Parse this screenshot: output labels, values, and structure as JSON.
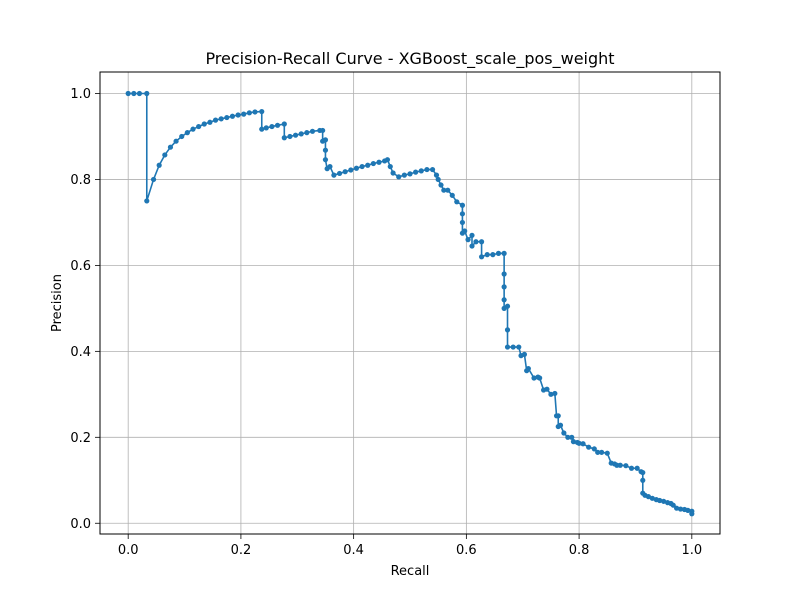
{
  "chart_data": {
    "type": "line",
    "title": "Precision-Recall Curve - XGBoost_scale_pos_weight",
    "xlabel": "Recall",
    "ylabel": "Precision",
    "xlim": [
      -0.05,
      1.05
    ],
    "ylim": [
      -0.025,
      1.05
    ],
    "x_ticks": [
      0.0,
      0.2,
      0.4,
      0.6,
      0.8,
      1.0
    ],
    "x_tick_labels": [
      "0.0",
      "0.2",
      "0.4",
      "0.6",
      "0.8",
      "1.0"
    ],
    "y_ticks": [
      0.0,
      0.2,
      0.4,
      0.6,
      0.8,
      1.0
    ],
    "y_tick_labels": [
      "0.0",
      "0.2",
      "0.4",
      "0.6",
      "0.8",
      "1.0"
    ],
    "grid": true,
    "legend": "none",
    "series_color": "#1f77b4",
    "series": [
      {
        "marker": "dot",
        "x": [
          0.0,
          0.01,
          0.02,
          0.033,
          0.033,
          0.045,
          0.055,
          0.065,
          0.075,
          0.085,
          0.095,
          0.105,
          0.115,
          0.125,
          0.135,
          0.145,
          0.155,
          0.165,
          0.175,
          0.185,
          0.195,
          0.205,
          0.215,
          0.225,
          0.237,
          0.237,
          0.245,
          0.255,
          0.265,
          0.277,
          0.277,
          0.287,
          0.297,
          0.307,
          0.317,
          0.327,
          0.34,
          0.345,
          0.345,
          0.35,
          0.35,
          0.35,
          0.353,
          0.358,
          0.365,
          0.375,
          0.385,
          0.395,
          0.405,
          0.415,
          0.425,
          0.435,
          0.445,
          0.455,
          0.46,
          0.465,
          0.47,
          0.48,
          0.49,
          0.5,
          0.51,
          0.52,
          0.53,
          0.54,
          0.547,
          0.55,
          0.555,
          0.56,
          0.567,
          0.575,
          0.583,
          0.593,
          0.593,
          0.593,
          0.593,
          0.597,
          0.603,
          0.61,
          0.61,
          0.617,
          0.627,
          0.627,
          0.637,
          0.647,
          0.657,
          0.667,
          0.667,
          0.667,
          0.667,
          0.667,
          0.673,
          0.673,
          0.673,
          0.683,
          0.693,
          0.697,
          0.703,
          0.707,
          0.71,
          0.72,
          0.727,
          0.73,
          0.737,
          0.743,
          0.75,
          0.757,
          0.76,
          0.763,
          0.763,
          0.767,
          0.773,
          0.78,
          0.787,
          0.79,
          0.797,
          0.8,
          0.807,
          0.817,
          0.827,
          0.833,
          0.84,
          0.85,
          0.857,
          0.863,
          0.867,
          0.873,
          0.883,
          0.893,
          0.903,
          0.91,
          0.913,
          0.913,
          0.913,
          0.917,
          0.923,
          0.93,
          0.937,
          0.943,
          0.95,
          0.957,
          0.963,
          0.967,
          0.973,
          0.98,
          0.987,
          0.993,
          1.0,
          1.0
        ],
        "y": [
          1.0,
          1.0,
          1.0,
          1.0,
          0.75,
          0.8,
          0.833,
          0.857,
          0.875,
          0.889,
          0.9,
          0.909,
          0.917,
          0.923,
          0.929,
          0.933,
          0.938,
          0.941,
          0.944,
          0.947,
          0.95,
          0.952,
          0.955,
          0.957,
          0.958,
          0.917,
          0.92,
          0.923,
          0.926,
          0.929,
          0.897,
          0.9,
          0.903,
          0.906,
          0.909,
          0.912,
          0.914,
          0.914,
          0.889,
          0.892,
          0.868,
          0.846,
          0.825,
          0.83,
          0.81,
          0.814,
          0.818,
          0.822,
          0.826,
          0.83,
          0.833,
          0.837,
          0.84,
          0.843,
          0.846,
          0.83,
          0.815,
          0.806,
          0.81,
          0.813,
          0.817,
          0.82,
          0.823,
          0.823,
          0.81,
          0.8,
          0.787,
          0.775,
          0.775,
          0.763,
          0.748,
          0.74,
          0.72,
          0.7,
          0.675,
          0.68,
          0.66,
          0.67,
          0.645,
          0.655,
          0.655,
          0.62,
          0.625,
          0.625,
          0.628,
          0.628,
          0.58,
          0.55,
          0.52,
          0.5,
          0.505,
          0.45,
          0.41,
          0.41,
          0.41,
          0.39,
          0.393,
          0.355,
          0.36,
          0.338,
          0.34,
          0.338,
          0.31,
          0.312,
          0.3,
          0.302,
          0.25,
          0.25,
          0.225,
          0.228,
          0.21,
          0.2,
          0.2,
          0.19,
          0.188,
          0.186,
          0.185,
          0.177,
          0.173,
          0.165,
          0.165,
          0.163,
          0.14,
          0.138,
          0.135,
          0.135,
          0.134,
          0.128,
          0.128,
          0.12,
          0.118,
          0.1,
          0.07,
          0.065,
          0.062,
          0.058,
          0.055,
          0.053,
          0.051,
          0.048,
          0.046,
          0.042,
          0.035,
          0.033,
          0.032,
          0.03,
          0.028,
          0.022
        ]
      }
    ]
  }
}
